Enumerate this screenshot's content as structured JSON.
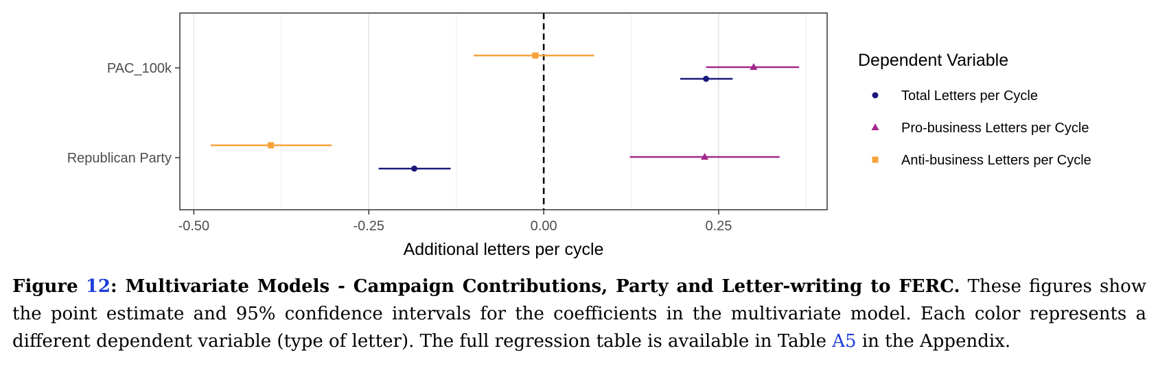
{
  "chart_data": {
    "type": "scatter",
    "subtype": "coefficient-plot",
    "xlabel": "Additional letters per cycle",
    "ylabel": "",
    "xlim": [
      -0.52,
      0.405
    ],
    "x_ticks": [
      -0.5,
      -0.25,
      0.0,
      0.25
    ],
    "x_tick_labels": [
      "-0.50",
      "-0.25",
      "0.00",
      "0.25"
    ],
    "categories": [
      "PAC_100k",
      "Republican Party"
    ],
    "reference_line": 0.0,
    "grid": true,
    "legend": {
      "title": "Dependent Variable",
      "placement": "right"
    },
    "series": [
      {
        "name": "Total Letters per Cycle",
        "color": "#1a1a7a",
        "marker": "circle",
        "points": [
          {
            "category": "PAC_100k",
            "estimate": 0.232,
            "ci": [
              0.195,
              0.27
            ]
          },
          {
            "category": "Republican Party",
            "estimate": -0.185,
            "ci": [
              -0.236,
              -0.133
            ]
          }
        ]
      },
      {
        "name": "Pro-business Letters per Cycle",
        "color": "#a3288c",
        "marker": "triangle",
        "points": [
          {
            "category": "PAC_100k",
            "estimate": 0.3,
            "ci": [
              0.232,
              0.365
            ]
          },
          {
            "category": "Republican Party",
            "estimate": 0.23,
            "ci": [
              0.123,
              0.337
            ]
          }
        ]
      },
      {
        "name": "Anti-business Letters per Cycle",
        "color": "#f7a13a",
        "marker": "square",
        "points": [
          {
            "category": "PAC_100k",
            "estimate": -0.012,
            "ci": [
              -0.1,
              0.072
            ]
          },
          {
            "category": "Republican Party",
            "estimate": -0.39,
            "ci": [
              -0.476,
              -0.303
            ]
          }
        ]
      }
    ]
  },
  "caption": {
    "figure_word": "Figure",
    "figure_number": "12",
    "title": ": Multivariate Models - Campaign Contributions, Party and Letter-writing to FERC.",
    "body_before_link": " These figures show the point estimate and 95% confidence intervals for the coefficients in the multivariate model. Each color represents a different dependent variable (type of letter). The full regression table is available in Table ",
    "table_ref": "A5",
    "body_after_link": " in the Appendix."
  }
}
